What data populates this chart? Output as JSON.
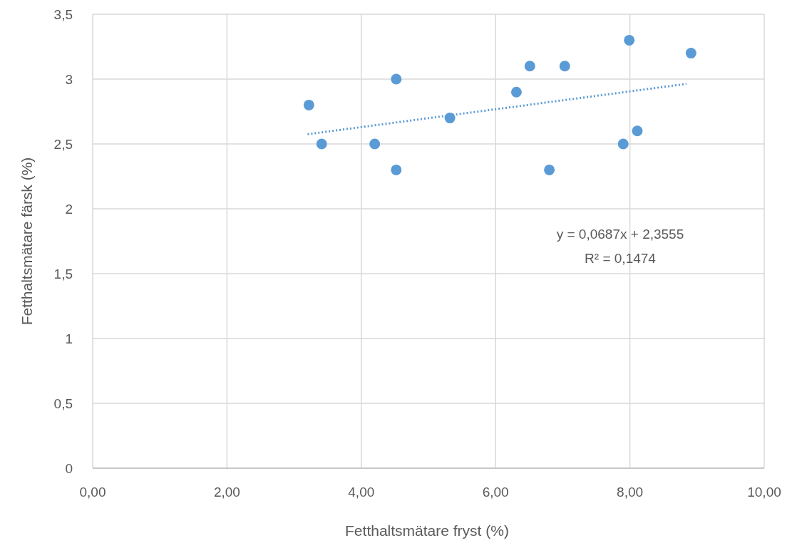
{
  "chart_data": {
    "type": "scatter",
    "xlabel": "Fetthaltsmätare fryst (%)",
    "ylabel": "Fetthaltsmätare färsk (%)",
    "xlim": [
      0,
      10
    ],
    "ylim": [
      0,
      3.5
    ],
    "xticks": [
      {
        "value": 0,
        "label": "0,00"
      },
      {
        "value": 2,
        "label": "2,00"
      },
      {
        "value": 4,
        "label": "4,00"
      },
      {
        "value": 6,
        "label": "6,00"
      },
      {
        "value": 8,
        "label": "8,00"
      },
      {
        "value": 10,
        "label": "10,00"
      }
    ],
    "yticks": [
      0,
      {
        "value": 0.5,
        "label": "0,5"
      },
      1,
      {
        "value": 1.5,
        "label": "1,5"
      },
      2,
      {
        "value": 2.5,
        "label": "2,5"
      },
      3,
      {
        "value": 3.5,
        "label": "3,5"
      }
    ],
    "grid": true,
    "series": [
      {
        "color": "#5b9bd5",
        "marker": "circle",
        "x": [
          3.22,
          3.41,
          4.2,
          4.52,
          4.52,
          5.32,
          6.31,
          6.51,
          7.03,
          6.8,
          7.9,
          7.99,
          8.11,
          8.91
        ],
        "values": [
          2.8,
          2.5,
          2.5,
          3.0,
          2.3,
          2.7,
          2.9,
          3.1,
          3.1,
          2.3,
          2.5,
          3.3,
          2.6,
          3.2
        ]
      },
      {
        "type": "line",
        "color": "#5b9bd5",
        "line_style": "dotted",
        "x": [
          3.2,
          8.84
        ],
        "values": [
          2.575,
          2.963
        ]
      }
    ],
    "annotations": [
      "y = 0,0687x + 2,3555",
      "R² = 0,1474"
    ]
  }
}
